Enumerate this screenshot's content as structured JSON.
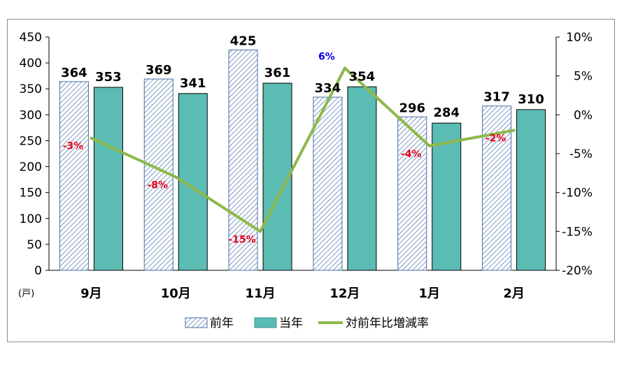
{
  "chart_data": {
    "type": "bar",
    "categories": [
      "9月",
      "10月",
      "11月",
      "12月",
      "1月",
      "2月"
    ],
    "series": [
      {
        "name": "前年",
        "kind": "bar",
        "pattern": "hatch",
        "values": [
          364,
          369,
          425,
          334,
          296,
          317
        ]
      },
      {
        "name": "当年",
        "kind": "bar",
        "color": "#5bbcb4",
        "values": [
          353,
          341,
          361,
          354,
          284,
          310
        ]
      },
      {
        "name": "対前年比増減率",
        "kind": "line",
        "axis": "right",
        "color": "#8db84a",
        "values": [
          -3,
          -8,
          -15,
          6,
          -4,
          -2
        ],
        "labels": [
          "-3%",
          "-8%",
          "-15%",
          "6%",
          "-4%",
          "-2%"
        ]
      }
    ],
    "left_axis": {
      "ylim": [
        0,
        450
      ],
      "ticks": [
        "0",
        "50",
        "100",
        "150",
        "200",
        "250",
        "300",
        "350",
        "400",
        "450"
      ],
      "unit": "(戸)"
    },
    "right_axis": {
      "ylim": [
        -20,
        10
      ],
      "ticks": [
        "-20%",
        "-15%",
        "-10%",
        "-5%",
        "0%",
        "5%",
        "10%"
      ]
    },
    "legend": {
      "position": "bottom",
      "items": [
        "前年",
        "当年",
        "対前年比増減率"
      ]
    },
    "colors": {
      "bar_current": "#5bbcb4",
      "hatch": "#4a6ea8",
      "line": "#8db84a",
      "neg_label": "#e8001c",
      "pos_label": "#0000ee"
    }
  }
}
